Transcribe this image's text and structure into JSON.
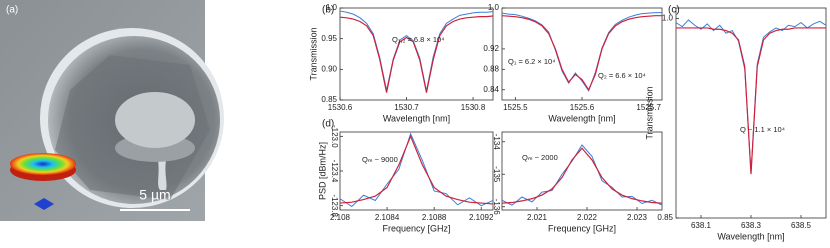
{
  "panel_a": {
    "label": "(a)",
    "scale_bar": "5 µm"
  },
  "chart_data": [
    {
      "type": "line",
      "panel_label": "(b)",
      "ylabel": "Transmission",
      "xlabel": "Wavelength [nm]",
      "annotations": [
        "Q₁,₂ = 6.8 × 10⁴"
      ],
      "x": [
        1530.6,
        1530.61,
        1530.62,
        1530.63,
        1530.64,
        1530.65,
        1530.66,
        1530.67,
        1530.68,
        1530.69,
        1530.7,
        1530.71,
        1530.72,
        1530.73,
        1530.74,
        1530.75,
        1530.76,
        1530.77,
        1530.78,
        1530.79,
        1530.8,
        1530.81,
        1530.82,
        1530.83
      ],
      "series": [
        {
          "color": "#3a7fd5",
          "values": [
            0.995,
            0.993,
            0.99,
            0.984,
            0.975,
            0.958,
            0.918,
            0.866,
            0.917,
            0.948,
            0.955,
            0.947,
            0.918,
            0.865,
            0.92,
            0.958,
            0.975,
            0.982,
            0.988,
            0.99,
            0.992,
            0.993,
            0.993,
            0.994
          ]
        },
        {
          "color": "#d0203a",
          "values": [
            0.985,
            0.984,
            0.982,
            0.978,
            0.971,
            0.955,
            0.915,
            0.862,
            0.915,
            0.945,
            0.952,
            0.945,
            0.915,
            0.862,
            0.915,
            0.955,
            0.971,
            0.978,
            0.982,
            0.984,
            0.985,
            0.986,
            0.986,
            0.987
          ]
        }
      ],
      "xlim": [
        1530.6,
        1530.83
      ],
      "xticks": [
        1530.6,
        1530.7,
        1530.8
      ],
      "ylim": [
        0.85,
        1.0
      ],
      "yticks": [
        {
          "value": 0.85,
          "label": "0.85"
        },
        {
          "value": 0.9,
          "label": "0.90"
        },
        0.95,
        {
          "value": 1,
          "label": "1.0"
        }
      ]
    },
    {
      "type": "line",
      "xlabel": "Wavelength [nm]",
      "annotations": [
        "Q₁ = 6.2 × 10⁴",
        "Q₂ = 6.6 × 10⁴"
      ],
      "x": [
        1525.48,
        1525.49,
        1525.5,
        1525.51,
        1525.52,
        1525.53,
        1525.54,
        1525.55,
        1525.56,
        1525.57,
        1525.58,
        1525.59,
        1525.6,
        1525.61,
        1525.62,
        1525.63,
        1525.64,
        1525.65,
        1525.66,
        1525.67,
        1525.68,
        1525.69,
        1525.7,
        1525.71,
        1525.72
      ],
      "series": [
        {
          "color": "#3a7fd5",
          "values": [
            0.99,
            0.988,
            0.987,
            0.984,
            0.98,
            0.975,
            0.967,
            0.953,
            0.918,
            0.877,
            0.853,
            0.873,
            0.857,
            0.838,
            0.874,
            0.922,
            0.952,
            0.968,
            0.976,
            0.982,
            0.986,
            0.989,
            0.99,
            0.991,
            0.991
          ]
        },
        {
          "color": "#d0203a",
          "values": [
            0.985,
            0.984,
            0.983,
            0.981,
            0.978,
            0.973,
            0.965,
            0.95,
            0.92,
            0.88,
            0.855,
            0.87,
            0.86,
            0.84,
            0.87,
            0.92,
            0.95,
            0.965,
            0.973,
            0.978,
            0.981,
            0.983,
            0.984,
            0.985,
            0.985
          ]
        }
      ],
      "xlim": [
        1525.48,
        1525.72
      ],
      "xticks": [
        1525.5,
        1525.6,
        1525.7
      ],
      "ylim": [
        0.82,
        1.0
      ],
      "yticks": [
        0.84,
        0.88,
        0.92,
        {
          "value": 1,
          "label": "1.0"
        }
      ]
    },
    {
      "type": "line",
      "panel_label": "(c)",
      "ylabel": "Transmission",
      "xlabel": "Wavelength [nm]",
      "annotations": [
        "Q ~ 1.1 × 10⁴"
      ],
      "x": [
        638.0,
        638.025,
        638.05,
        638.075,
        638.1,
        638.125,
        638.15,
        638.175,
        638.2,
        638.225,
        638.25,
        638.275,
        638.3,
        638.325,
        638.35,
        638.375,
        638.4,
        638.425,
        638.45,
        638.475,
        638.5,
        638.525,
        638.55,
        638.575,
        638.6
      ],
      "series": [
        {
          "color": "#3a7fd5",
          "values": [
            0.997,
            0.994,
            0.999,
            0.995,
            0.992,
            0.996,
            0.991,
            0.995,
            0.989,
            0.991,
            0.983,
            0.962,
            0.884,
            0.966,
            0.986,
            0.99,
            0.993,
            0.991,
            0.995,
            0.994,
            0.997,
            0.993,
            0.996,
            0.998,
            0.995
          ]
        },
        {
          "color": "#d0203a",
          "values": [
            0.993,
            0.993,
            0.993,
            0.993,
            0.993,
            0.993,
            0.992,
            0.992,
            0.991,
            0.989,
            0.984,
            0.964,
            0.883,
            0.964,
            0.984,
            0.989,
            0.991,
            0.992,
            0.992,
            0.993,
            0.993,
            0.993,
            0.993,
            0.993,
            0.993
          ]
        }
      ],
      "xlim": [
        638.0,
        638.6
      ],
      "xticks": [
        638.1,
        638.3,
        638.5
      ],
      "ylim": [
        0.85,
        1.008
      ],
      "yticks": [
        {
          "value": 0.85,
          "label": "0.85"
        },
        {
          "value": 1,
          "label": "1.0"
        }
      ]
    },
    {
      "type": "line",
      "panel_label": "(d)",
      "ylabel": "PSD [dBm/Hz]",
      "xlabel": "Frequency [GHz]",
      "annotations": [
        "Qₘ ~ 9000"
      ],
      "x": [
        2.108,
        2.1081,
        2.1082,
        2.1083,
        2.1084,
        2.1085,
        2.1086,
        2.1087,
        2.1088,
        2.1089,
        2.109,
        2.1091,
        2.1092,
        2.1093
      ],
      "series": [
        {
          "color": "#3a7fd5",
          "values": [
            -123.72,
            -123.81,
            -123.68,
            -123.74,
            -123.55,
            -123.38,
            -122.97,
            -123.28,
            -123.63,
            -123.66,
            -123.79,
            -123.71,
            -123.8,
            -123.74
          ]
        },
        {
          "color": "#d0203a",
          "values": [
            -123.77,
            -123.76,
            -123.73,
            -123.69,
            -123.59,
            -123.33,
            -123.0,
            -123.33,
            -123.59,
            -123.69,
            -123.73,
            -123.76,
            -123.77,
            -123.78
          ]
        }
      ],
      "xlim": [
        2.108,
        2.1093
      ],
      "xticks": [
        2.108,
        2.1084,
        2.1088,
        2.1092
      ],
      "ylim": [
        -123.85,
        -122.95
      ],
      "yticks": [
        {
          "value": -123,
          "label": "-123.0"
        },
        -123.4,
        -123.8
      ]
    },
    {
      "type": "line",
      "xlabel": "Frequency [GHz]",
      "annotations": [
        "Qₘ ~ 2000"
      ],
      "x": [
        2.0203,
        2.0205,
        2.0207,
        2.0209,
        2.0211,
        2.0213,
        2.0215,
        2.0217,
        2.0219,
        2.0221,
        2.0223,
        2.0225,
        2.0227,
        2.0229,
        2.0231,
        2.0233,
        2.0235
      ],
      "series": [
        {
          "color": "#3a7fd5",
          "values": [
            -135.8,
            -135.95,
            -135.7,
            -135.85,
            -135.55,
            -135.5,
            -135.0,
            -134.6,
            -134.1,
            -134.45,
            -135.2,
            -135.4,
            -135.7,
            -135.68,
            -135.9,
            -135.8,
            -135.95
          ]
        },
        {
          "color": "#d0203a",
          "values": [
            -135.89,
            -135.87,
            -135.82,
            -135.75,
            -135.64,
            -135.45,
            -135.1,
            -134.56,
            -134.2,
            -134.56,
            -135.1,
            -135.45,
            -135.64,
            -135.75,
            -135.82,
            -135.87,
            -135.89
          ]
        }
      ],
      "xlim": [
        2.0203,
        2.0235
      ],
      "xticks": [
        2.021,
        2.022,
        2.023
      ],
      "ylim": [
        -136.1,
        -133.7
      ],
      "yticks": [
        -134,
        -135,
        -136
      ]
    }
  ]
}
